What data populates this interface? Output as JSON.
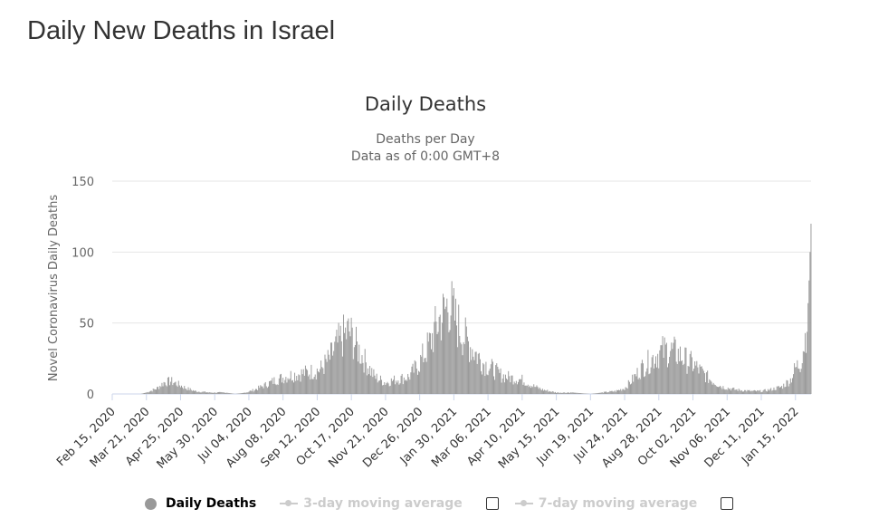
{
  "page": {
    "title": "Daily New Deaths in Israel"
  },
  "legend": {
    "items": [
      {
        "label": "Daily Deaths",
        "active": true
      },
      {
        "label": "3-day moving average",
        "active": false
      },
      {
        "label": "7-day moving average",
        "active": false
      }
    ]
  },
  "colors": {
    "bars": "#999999",
    "inactive": "#cccccc",
    "grid": "#e6e6e6",
    "text": "#333333",
    "axis_text": "#666666"
  },
  "chart_data": {
    "type": "bar",
    "title": "Daily Deaths",
    "subtitle_lines": [
      "Deaths per Day",
      "Data as of 0:00 GMT+8"
    ],
    "xlabel": "",
    "ylabel": "Novel Coronavirus Daily Deaths",
    "ylim": [
      0,
      150
    ],
    "yticks": [
      0,
      50,
      100,
      150
    ],
    "grid": true,
    "legend_position": "bottom",
    "x_start": "2020-02-15",
    "x_end": "2022-01-31",
    "xtick_labels": [
      "Feb 15, 2020",
      "Mar 21, 2020",
      "Apr 25, 2020",
      "May 30, 2020",
      "Jul 04, 2020",
      "Aug 08, 2020",
      "Sep 12, 2020",
      "Oct 17, 2020",
      "Nov 21, 2020",
      "Dec 26, 2020",
      "Jan 30, 2021",
      "Mar 06, 2021",
      "Apr 10, 2021",
      "May 15, 2021",
      "Jun 19, 2021",
      "Jul 24, 2021",
      "Aug 28, 2021",
      "Oct 02, 2021",
      "Nov 06, 2021",
      "Dec 11, 2021",
      "Jan 15, 2022"
    ],
    "series": [
      {
        "name": "Daily Deaths",
        "x_anchors": [
          "2020-02-15",
          "2020-03-15",
          "2020-03-21",
          "2020-04-01",
          "2020-04-08",
          "2020-04-15",
          "2020-04-22",
          "2020-05-01",
          "2020-05-10",
          "2020-05-25",
          "2020-06-10",
          "2020-06-20",
          "2020-07-01",
          "2020-07-10",
          "2020-07-20",
          "2020-08-01",
          "2020-08-15",
          "2020-09-01",
          "2020-09-15",
          "2020-09-25",
          "2020-10-01",
          "2020-10-08",
          "2020-10-15",
          "2020-10-22",
          "2020-11-01",
          "2020-11-10",
          "2020-11-21",
          "2020-12-01",
          "2020-12-15",
          "2020-12-26",
          "2021-01-05",
          "2021-01-15",
          "2021-01-20",
          "2021-01-25",
          "2021-02-01",
          "2021-02-10",
          "2021-02-20",
          "2021-03-01",
          "2021-03-10",
          "2021-03-20",
          "2021-04-01",
          "2021-04-10",
          "2021-04-20",
          "2021-05-01",
          "2021-05-15",
          "2021-06-01",
          "2021-06-19",
          "2021-07-01",
          "2021-07-15",
          "2021-07-24",
          "2021-08-01",
          "2021-08-10",
          "2021-08-20",
          "2021-08-28",
          "2021-09-05",
          "2021-09-15",
          "2021-09-25",
          "2021-10-02",
          "2021-10-10",
          "2021-10-20",
          "2021-11-01",
          "2021-11-15",
          "2021-12-01",
          "2021-12-11",
          "2021-12-20",
          "2022-01-01",
          "2022-01-10",
          "2022-01-15",
          "2022-01-20",
          "2022-01-25",
          "2022-01-28",
          "2022-01-29",
          "2022-01-30",
          "2022-01-31"
        ],
        "value_anchors": [
          0,
          0,
          1,
          4,
          8,
          9,
          7,
          4,
          2,
          1,
          1,
          0,
          1,
          3,
          6,
          10,
          13,
          15,
          17,
          25,
          33,
          40,
          44,
          34,
          22,
          12,
          8,
          10,
          12,
          22,
          35,
          52,
          57,
          65,
          52,
          40,
          30,
          22,
          18,
          13,
          11,
          10,
          6,
          3,
          1,
          1,
          0,
          1,
          2,
          4,
          10,
          18,
          24,
          29,
          31,
          29,
          24,
          21,
          16,
          10,
          5,
          3,
          2,
          2,
          3,
          5,
          10,
          18,
          22,
          40,
          64,
          80,
          100,
          120
        ]
      }
    ]
  }
}
